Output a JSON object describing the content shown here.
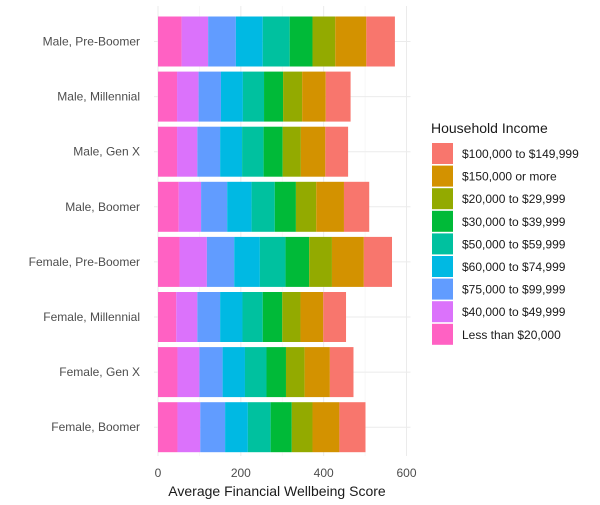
{
  "chart_data": {
    "type": "bar",
    "orientation": "horizontal",
    "stacked": true,
    "title": "",
    "xlabel": "Average Financial Wellbeing Score",
    "ylabel": "",
    "xlim": [
      0,
      600
    ],
    "x_ticks": [
      0,
      200,
      400,
      600
    ],
    "grid": true,
    "legend_title": "Household Income",
    "legend_position": "right",
    "categories": [
      "Male, Pre-Boomer",
      "Male, Millennial",
      "Male, Gen X",
      "Male, Boomer",
      "Female, Pre-Boomer",
      "Female, Millennial",
      "Female, Gen X",
      "Female, Boomer"
    ],
    "stack_order": [
      "Less than $20,000",
      "$40,000 to $49,999",
      "$75,000 to $99,999",
      "$60,000 to $74,999",
      "$50,000 to $59,999",
      "$30,000 to $39,999",
      "$20,000 to $29,999",
      "$150,000 or more",
      "$100,000 to $149,999"
    ],
    "series": [
      {
        "name": "$100,000 to $149,999",
        "color": "#F8766D",
        "values": [
          69,
          60,
          55,
          61,
          68,
          55,
          57,
          63
        ]
      },
      {
        "name": "$150,000 or more",
        "color": "#D39200",
        "values": [
          75,
          57,
          59,
          67,
          77,
          55,
          61,
          65
        ]
      },
      {
        "name": "$20,000 to $29,999",
        "color": "#93AA00",
        "values": [
          55,
          46,
          44,
          49,
          55,
          44,
          45,
          50
        ]
      },
      {
        "name": "$30,000 to $39,999",
        "color": "#00BA38",
        "values": [
          55,
          46,
          46,
          51,
          57,
          47,
          47,
          51
        ]
      },
      {
        "name": "$50,000 to $59,999",
        "color": "#00C19F",
        "values": [
          65,
          51,
          52,
          56,
          62,
          49,
          52,
          55
        ]
      },
      {
        "name": "$60,000 to $74,999",
        "color": "#00B9E3",
        "values": [
          65,
          53,
          53,
          59,
          62,
          54,
          54,
          55
        ]
      },
      {
        "name": "$75,000 to $99,999",
        "color": "#619CFF",
        "values": [
          67,
          54,
          55,
          63,
          66,
          55,
          56,
          60
        ]
      },
      {
        "name": "$40,000 to $49,999",
        "color": "#DB72FB",
        "values": [
          64,
          52,
          49,
          54,
          66,
          51,
          53,
          55
        ]
      },
      {
        "name": "Less than $20,000",
        "color": "#FF61C3",
        "values": [
          57,
          46,
          46,
          50,
          52,
          44,
          47,
          47
        ]
      }
    ]
  }
}
